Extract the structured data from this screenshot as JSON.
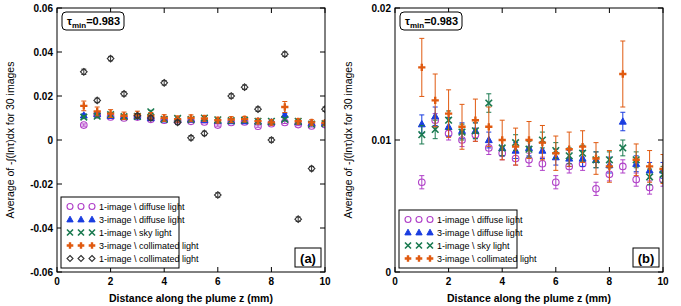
{
  "chart_data": [
    {
      "type": "scatter",
      "annotation": [
        "τ",
        "min",
        "=0.983"
      ],
      "panel_label": "(a)",
      "x_label": "Distance along the plume z (mm)",
      "y_label": "Average of -∫(lnτ)dx for 30 images",
      "xlim": [
        0,
        10
      ],
      "xticks": [
        0,
        2,
        4,
        6,
        8,
        10
      ],
      "ylim": [
        -0.06,
        0.06
      ],
      "yticks": [
        -0.06,
        -0.04,
        -0.02,
        0,
        0.02,
        0.04,
        0.06
      ],
      "grid": false,
      "legend": "lower left",
      "x": [
        1,
        1.5,
        2,
        2.5,
        3,
        3.5,
        4,
        4.5,
        5,
        5.5,
        6,
        6.5,
        7,
        7.5,
        8,
        8.5,
        9,
        9.5,
        10
      ],
      "series": [
        {
          "name": "1-image \\ diffuse light",
          "color": "#b040c8",
          "marker": "circle",
          "values": [
            0.0068,
            0.0115,
            0.0105,
            0.01,
            0.0104,
            0.0094,
            0.009,
            0.0086,
            0.0085,
            0.0082,
            0.0068,
            0.008,
            0.0082,
            0.0063,
            0.0074,
            0.008,
            0.007,
            0.0064,
            0.007
          ],
          "errors": [
            0.0005,
            0.0005,
            0.0005,
            0.0005,
            0.0005,
            0.0005,
            0.0005,
            0.0005,
            0.0005,
            0.0005,
            0.0005,
            0.0005,
            0.0005,
            0.0005,
            0.0005,
            0.0005,
            0.0005,
            0.0005,
            0.0005
          ]
        },
        {
          "name": "3-image \\ diffuse light",
          "color": "#1a3de0",
          "marker": "triangle",
          "values": [
            0.0112,
            0.0118,
            0.011,
            0.0107,
            0.0107,
            0.01,
            0.0094,
            0.0092,
            0.0094,
            0.0092,
            0.0087,
            0.0086,
            0.0086,
            0.0085,
            0.0081,
            0.0114,
            0.0082,
            0.0077,
            0.0077
          ],
          "errors": [
            0.0007,
            0.0007,
            0.0007,
            0.0006,
            0.0006,
            0.0006,
            0.0006,
            0.0006,
            0.0006,
            0.0006,
            0.0006,
            0.0006,
            0.0006,
            0.0006,
            0.0006,
            0.0007,
            0.0006,
            0.0006,
            0.0006
          ]
        },
        {
          "name": "1-image \\ sky light",
          "color": "#1a7a50",
          "marker": "x",
          "values": [
            0.0104,
            0.0108,
            0.0115,
            0.0106,
            0.0107,
            0.0128,
            0.0094,
            0.0098,
            0.0093,
            0.01,
            0.0092,
            0.0088,
            0.009,
            0.0085,
            0.0085,
            0.0094,
            0.0085,
            0.0072,
            0.0074
          ],
          "errors": [
            0.0007,
            0.0007,
            0.0007,
            0.0006,
            0.0006,
            0.0007,
            0.0006,
            0.0006,
            0.0006,
            0.0006,
            0.0006,
            0.0006,
            0.0006,
            0.0006,
            0.0006,
            0.0006,
            0.0006,
            0.0006,
            0.0006
          ]
        },
        {
          "name": "3-image \\ collimated light",
          "color": "#e05a10",
          "marker": "plus",
          "values": [
            0.0155,
            0.013,
            0.012,
            0.011,
            0.0115,
            0.011,
            0.01,
            0.0095,
            0.01,
            0.0098,
            0.009,
            0.0093,
            0.0095,
            0.0086,
            0.008,
            0.015,
            0.0085,
            0.008,
            0.0078
          ],
          "errors": [
            0.0022,
            0.002,
            0.0018,
            0.0017,
            0.0016,
            0.0015,
            0.0015,
            0.0014,
            0.0014,
            0.0013,
            0.0013,
            0.0013,
            0.0012,
            0.0012,
            0.0012,
            0.0025,
            0.0012,
            0.0012,
            0.0011
          ]
        },
        {
          "name": "1-image \\ collimated light",
          "color": "#333333",
          "marker": "diamond",
          "values": [
            0.031,
            0.018,
            0.037,
            0.021,
            0.011,
            0.01,
            0.026,
            0.008,
            0.001,
            0.003,
            -0.025,
            0.02,
            0.024,
            0.014,
            0.0,
            0.039,
            -0.036,
            -0.013,
            0.014
          ],
          "errors": [
            0.0012,
            0.001,
            0.001,
            0.001,
            0.001,
            0.001,
            0.001,
            0.001,
            0.001,
            0.001,
            0.001,
            0.001,
            0.001,
            0.001,
            0.001,
            0.001,
            0.001,
            0.001,
            0.001
          ]
        }
      ]
    },
    {
      "type": "scatter",
      "annotation": [
        "τ",
        "min",
        "=0.983"
      ],
      "panel_label": "(b)",
      "x_label": "Distance along the plume z (mm)",
      "y_label": "Average of -∫(lnτ)dx for 30 images",
      "xlim": [
        0,
        10
      ],
      "xticks": [
        0,
        2,
        4,
        6,
        8,
        10
      ],
      "ylim": [
        0,
        0.02
      ],
      "yticks": [
        0,
        0.01,
        0.02
      ],
      "grid": false,
      "legend": "lower left",
      "x": [
        1,
        1.5,
        2,
        2.5,
        3,
        3.5,
        4,
        4.5,
        5,
        5.5,
        6,
        6.5,
        7,
        7.5,
        8,
        8.5,
        9,
        9.5,
        10
      ],
      "series": [
        {
          "name": "1-image \\ diffuse light",
          "color": "#b040c8",
          "marker": "circle",
          "values": [
            0.0068,
            0.0115,
            0.0105,
            0.01,
            0.0104,
            0.0094,
            0.009,
            0.0086,
            0.0085,
            0.0082,
            0.0068,
            0.008,
            0.0082,
            0.0063,
            0.0074,
            0.008,
            0.007,
            0.0064,
            0.007
          ],
          "errors": [
            0.0005,
            0.0005,
            0.0005,
            0.0005,
            0.0005,
            0.0005,
            0.0005,
            0.0005,
            0.0005,
            0.0005,
            0.0005,
            0.0005,
            0.0005,
            0.0005,
            0.0005,
            0.0005,
            0.0005,
            0.0005,
            0.0005
          ]
        },
        {
          "name": "3-image \\ diffuse light",
          "color": "#1a3de0",
          "marker": "triangle",
          "values": [
            0.0112,
            0.0118,
            0.011,
            0.0107,
            0.0107,
            0.01,
            0.0094,
            0.0092,
            0.0094,
            0.0092,
            0.0087,
            0.0086,
            0.0086,
            0.0085,
            0.0081,
            0.0114,
            0.0082,
            0.0077,
            0.0077
          ],
          "errors": [
            0.0007,
            0.0007,
            0.0007,
            0.0006,
            0.0006,
            0.0006,
            0.0006,
            0.0006,
            0.0006,
            0.0006,
            0.0006,
            0.0006,
            0.0006,
            0.0006,
            0.0006,
            0.0007,
            0.0006,
            0.0006,
            0.0006
          ]
        },
        {
          "name": "1-image \\ sky light",
          "color": "#1a7a50",
          "marker": "x",
          "values": [
            0.0104,
            0.0108,
            0.0115,
            0.0106,
            0.0107,
            0.0128,
            0.0094,
            0.0098,
            0.0093,
            0.01,
            0.0092,
            0.0088,
            0.009,
            0.0085,
            0.0085,
            0.0094,
            0.0085,
            0.0072,
            0.0074
          ],
          "errors": [
            0.0007,
            0.0007,
            0.0007,
            0.0006,
            0.0006,
            0.0007,
            0.0006,
            0.0006,
            0.0006,
            0.0006,
            0.0006,
            0.0006,
            0.0006,
            0.0006,
            0.0006,
            0.0006,
            0.0006,
            0.0006,
            0.0006
          ]
        },
        {
          "name": "3-image \\ collimated light",
          "color": "#e05a10",
          "marker": "plus",
          "values": [
            0.0155,
            0.013,
            0.012,
            0.011,
            0.0115,
            0.011,
            0.01,
            0.0095,
            0.01,
            0.0098,
            0.009,
            0.0093,
            0.0095,
            0.0086,
            0.008,
            0.015,
            0.0085,
            0.008,
            0.0078
          ],
          "errors": [
            0.0022,
            0.002,
            0.0018,
            0.0017,
            0.0016,
            0.0015,
            0.0015,
            0.0014,
            0.0014,
            0.0013,
            0.0013,
            0.0013,
            0.0012,
            0.0012,
            0.0012,
            0.0025,
            0.0012,
            0.0012,
            0.0011
          ]
        }
      ]
    }
  ]
}
